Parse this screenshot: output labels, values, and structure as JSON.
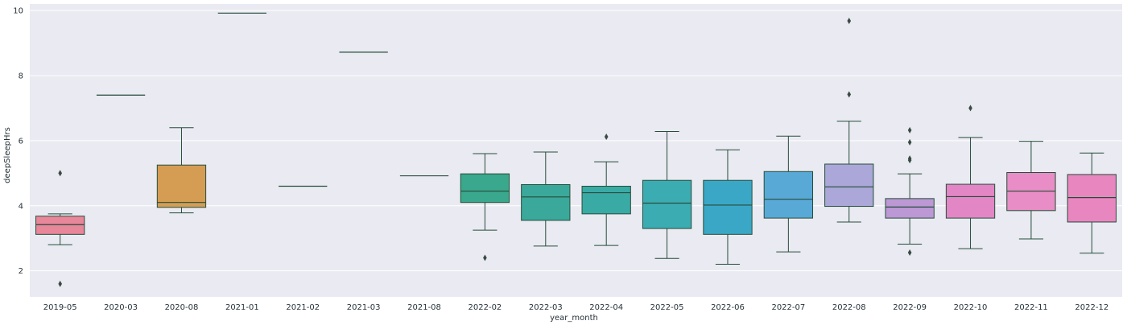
{
  "chart_data": {
    "type": "box",
    "title": "",
    "xlabel": "year_month",
    "ylabel": "deepSleepHrs",
    "ylim": [
      1.2,
      10.2
    ],
    "yticks": [
      2,
      4,
      6,
      8,
      10
    ],
    "ytick_labels": [
      "2",
      "4",
      "6",
      "8",
      "10"
    ],
    "grid": true,
    "legend": "none",
    "categories": [
      {
        "label": "2019-05",
        "q1": 3.12,
        "median": 3.42,
        "q3": 3.68,
        "whislo": 2.8,
        "whishi": 3.75,
        "fliers": [
          5.0,
          1.6
        ],
        "color": "#e8869a"
      },
      {
        "label": "2020-03",
        "q1": 7.4,
        "median": 7.4,
        "q3": 7.4,
        "whislo": 7.4,
        "whishi": 7.4,
        "fliers": [],
        "color": "#d59c54"
      },
      {
        "label": "2020-08",
        "q1": 3.95,
        "median": 4.1,
        "q3": 5.25,
        "whislo": 3.78,
        "whishi": 6.4,
        "fliers": [],
        "color": "#d59c54"
      },
      {
        "label": "2021-01",
        "q1": 9.92,
        "median": 9.92,
        "q3": 9.92,
        "whislo": 9.92,
        "whishi": 9.92,
        "fliers": [],
        "color": "#b5a64c"
      },
      {
        "label": "2021-02",
        "q1": 4.6,
        "median": 4.6,
        "q3": 4.6,
        "whislo": 4.6,
        "whishi": 4.6,
        "fliers": [],
        "color": "#99a84a"
      },
      {
        "label": "2021-03",
        "q1": 8.72,
        "median": 8.72,
        "q3": 8.72,
        "whislo": 8.72,
        "whishi": 8.72,
        "fliers": [],
        "color": "#6fb04e"
      },
      {
        "label": "2021-08",
        "q1": 4.92,
        "median": 4.92,
        "q3": 4.92,
        "whislo": 4.92,
        "whishi": 4.92,
        "fliers": [],
        "color": "#4fb07a"
      },
      {
        "label": "2022-02",
        "q1": 4.1,
        "median": 4.45,
        "q3": 4.98,
        "whislo": 3.25,
        "whishi": 5.6,
        "fliers": [
          2.4
        ],
        "color": "#3aa88d"
      },
      {
        "label": "2022-03",
        "q1": 3.55,
        "median": 4.27,
        "q3": 4.65,
        "whislo": 2.76,
        "whishi": 5.65,
        "fliers": [],
        "color": "#3aa89a"
      },
      {
        "label": "2022-04",
        "q1": 3.75,
        "median": 4.4,
        "q3": 4.6,
        "whislo": 2.78,
        "whishi": 5.35,
        "fliers": [
          6.12
        ],
        "color": "#3aaaa5"
      },
      {
        "label": "2022-05",
        "q1": 3.3,
        "median": 4.08,
        "q3": 4.78,
        "whislo": 2.38,
        "whishi": 6.28,
        "fliers": [],
        "color": "#3cacb3"
      },
      {
        "label": "2022-06",
        "q1": 3.12,
        "median": 4.02,
        "q3": 4.78,
        "whislo": 2.2,
        "whishi": 5.72,
        "fliers": [],
        "color": "#3ba7c6"
      },
      {
        "label": "2022-07",
        "q1": 3.62,
        "median": 4.2,
        "q3": 5.05,
        "whislo": 2.58,
        "whishi": 6.14,
        "fliers": [],
        "color": "#58a9d6"
      },
      {
        "label": "2022-08",
        "q1": 3.98,
        "median": 4.58,
        "q3": 5.28,
        "whislo": 3.5,
        "whishi": 6.6,
        "fliers": [
          7.42,
          9.68
        ],
        "color": "#aba7d8"
      },
      {
        "label": "2022-09",
        "q1": 3.62,
        "median": 3.96,
        "q3": 4.22,
        "whislo": 2.82,
        "whishi": 4.98,
        "fliers": [
          2.56,
          5.4,
          5.45,
          5.95,
          6.32
        ],
        "color": "#bc98d4"
      },
      {
        "label": "2022-10",
        "q1": 3.62,
        "median": 4.28,
        "q3": 4.66,
        "whislo": 2.68,
        "whishi": 6.1,
        "fliers": [
          7.0
        ],
        "color": "#e286c6"
      },
      {
        "label": "2022-11",
        "q1": 3.85,
        "median": 4.45,
        "q3": 5.02,
        "whislo": 2.98,
        "whishi": 5.98,
        "fliers": [],
        "color": "#e88dc6"
      },
      {
        "label": "2022-12",
        "q1": 3.5,
        "median": 4.25,
        "q3": 4.96,
        "whislo": 2.54,
        "whishi": 5.62,
        "fliers": [],
        "color": "#e886c0"
      }
    ],
    "colors": {
      "plot_background": "#eaeaf2",
      "grid": "#ffffff",
      "line": "#264d3a"
    }
  }
}
